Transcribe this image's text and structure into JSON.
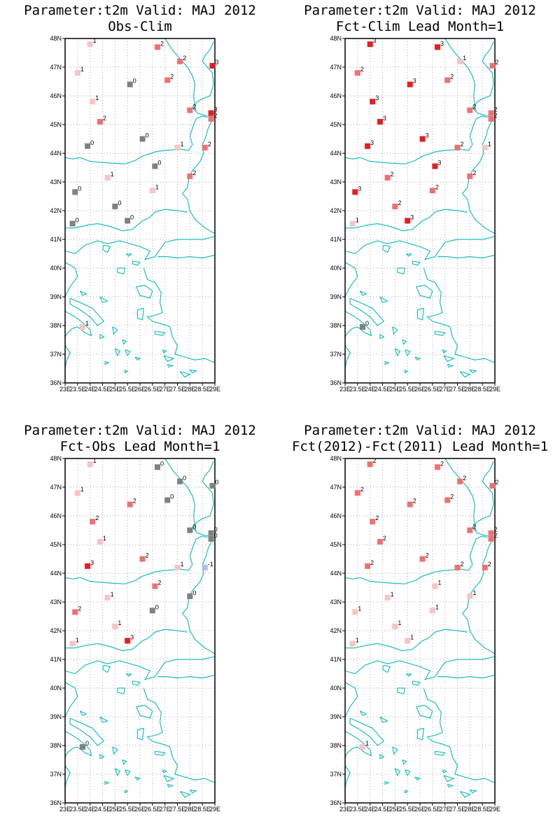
{
  "colors": {
    "coast": "#1ebebe",
    "grid": "#aaaaaa",
    "cat_-1": "#b8b8f0",
    "cat_0": "#808080",
    "cat_1": "#f7c3c3",
    "cat_2": "#f07070",
    "cat_3": "#e61e1e"
  },
  "axes": {
    "lon_range": [
      23,
      29
    ],
    "lat_range": [
      36,
      48
    ],
    "lon_ticks": [
      {
        "v": 23,
        "label": "23E"
      },
      {
        "v": 23.5,
        "label": "23.5E"
      },
      {
        "v": 24,
        "label": "24E"
      },
      {
        "v": 24.5,
        "label": "24.5E"
      },
      {
        "v": 25,
        "label": "25E"
      },
      {
        "v": 25.5,
        "label": "25.5E"
      },
      {
        "v": 26,
        "label": "26E"
      },
      {
        "v": 26.5,
        "label": "26.5E"
      },
      {
        "v": 27,
        "label": "27E"
      },
      {
        "v": 27.5,
        "label": "27.5E"
      },
      {
        "v": 28,
        "label": "28E"
      },
      {
        "v": 28.5,
        "label": "28.5E"
      },
      {
        "v": 29,
        "label": "29E"
      }
    ],
    "lat_ticks": [
      {
        "v": 36,
        "label": "36N"
      },
      {
        "v": 37,
        "label": "37N"
      },
      {
        "v": 38,
        "label": "38N"
      },
      {
        "v": 39,
        "label": "39N"
      },
      {
        "v": 40,
        "label": "40N"
      },
      {
        "v": 41,
        "label": "41N"
      },
      {
        "v": 42,
        "label": "42N"
      },
      {
        "v": 43,
        "label": "43N"
      },
      {
        "v": 44,
        "label": "44N"
      },
      {
        "v": 45,
        "label": "45N"
      },
      {
        "v": 46,
        "label": "46N"
      },
      {
        "v": 47,
        "label": "47N"
      },
      {
        "v": 48,
        "label": "48N"
      }
    ]
  },
  "stations": [
    [
      24.0,
      47.8
    ],
    [
      26.7,
      47.7
    ],
    [
      27.6,
      47.2
    ],
    [
      28.9,
      47.05
    ],
    [
      23.5,
      46.8
    ],
    [
      27.1,
      46.55
    ],
    [
      25.6,
      46.4
    ],
    [
      24.1,
      45.8
    ],
    [
      28.0,
      45.5
    ],
    [
      28.85,
      45.4
    ],
    [
      28.85,
      45.2
    ],
    [
      24.4,
      45.1
    ],
    [
      26.1,
      44.5
    ],
    [
      23.9,
      44.25
    ],
    [
      27.5,
      44.2
    ],
    [
      28.6,
      44.2
    ],
    [
      26.6,
      43.55
    ],
    [
      28.0,
      43.2
    ],
    [
      24.7,
      43.15
    ],
    [
      26.5,
      42.7
    ],
    [
      23.4,
      42.65
    ],
    [
      25.0,
      42.15
    ],
    [
      25.5,
      41.65
    ],
    [
      23.3,
      41.55
    ],
    [
      23.7,
      37.95
    ]
  ],
  "panels": [
    {
      "title1": "Parameter:t2m Valid: MAJ 2012",
      "title2": "Obs-Clim",
      "values": [
        "1",
        "2",
        "2",
        "3",
        "1",
        "2",
        "0",
        "1",
        "2",
        "3",
        "2",
        "2",
        "0",
        "0",
        "1",
        "2",
        "0",
        "2",
        "1",
        "1",
        "0",
        "0",
        "0",
        "0",
        "1"
      ]
    },
    {
      "title1": "Parameter:t2m Valid: MAJ 2012",
      "title2": "Fct-Clim Lead Month=1",
      "values": [
        "3",
        "3",
        "1",
        "2",
        "2",
        "2",
        "3",
        "3",
        "2",
        "2",
        "2",
        "3",
        "3",
        "3",
        "2",
        "1",
        "3",
        "2",
        "2",
        "2",
        "3",
        "2",
        "3",
        "1",
        "0"
      ]
    },
    {
      "title1": "Parameter:t2m Valid: MAJ 2012",
      "title2": "Fct-Obs Lead Month=1",
      "values": [
        "1",
        "0",
        "0",
        "0",
        "1",
        "0",
        "2",
        "2",
        "0",
        "0",
        "0",
        "1",
        "2",
        "3",
        "1",
        "-1",
        "2",
        "0",
        "1",
        "0",
        "2",
        "1",
        "3",
        "1",
        "0"
      ]
    },
    {
      "title1": "Parameter:t2m Valid: MAJ 2012",
      "title2": "Fct(2012)-Fct(2011) Lead Month=1",
      "values": [
        "2",
        "2",
        "2",
        "2",
        "2",
        "2",
        "2",
        "2",
        "2",
        "2",
        "2",
        "2",
        "2",
        "2",
        "2",
        "2",
        "1",
        "1",
        "1",
        "1",
        "1",
        "1",
        "1",
        "1",
        "1"
      ]
    }
  ]
}
